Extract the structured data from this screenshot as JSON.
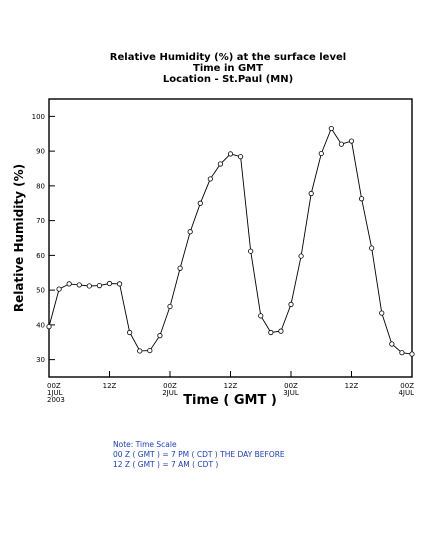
{
  "chart_data": {
    "type": "line",
    "title_lines": [
      "Relative Humidity (%) at the surface level",
      "Time in GMT",
      "Location - St.Paul (MN)"
    ],
    "xlabel": "Time ( GMT )",
    "ylabel": "Relative Humidity (%)",
    "ylim": [
      25,
      105
    ],
    "xlim": [
      0,
      72
    ],
    "y_ticks": [
      30,
      40,
      50,
      60,
      70,
      80,
      90,
      100
    ],
    "x_ticks": [
      {
        "x": 0,
        "lines": [
          "00Z",
          "1JUL",
          "2003"
        ]
      },
      {
        "x": 12,
        "lines": [
          "12Z"
        ]
      },
      {
        "x": 24,
        "lines": [
          "00Z",
          "2JUL"
        ]
      },
      {
        "x": 36,
        "lines": [
          "12Z"
        ]
      },
      {
        "x": 48,
        "lines": [
          "00Z",
          "3JUL"
        ]
      },
      {
        "x": 60,
        "lines": [
          "12Z"
        ]
      },
      {
        "x": 72,
        "lines": [
          "00Z",
          "4JUL"
        ]
      }
    ],
    "grid": false,
    "series": [
      {
        "x": [
          0,
          2,
          4,
          6,
          8,
          10,
          12,
          14,
          16,
          18,
          20,
          22,
          24,
          26,
          28,
          30,
          32,
          34,
          36,
          38,
          40,
          42,
          44,
          46,
          48,
          50,
          52,
          54,
          56,
          58,
          60,
          62,
          64,
          66,
          68,
          70,
          72
        ],
        "y": [
          39.5,
          50.3,
          51.8,
          51.5,
          51.2,
          51.3,
          51.9,
          51.8,
          37.8,
          32.5,
          32.6,
          36.9,
          45.3,
          56.3,
          66.8,
          75.0,
          82.0,
          86.3,
          89.2,
          88.4,
          61.2,
          42.6,
          37.8,
          38.2,
          45.9,
          59.8,
          77.8,
          89.3,
          96.5,
          92.0,
          92.9,
          76.3,
          62.1,
          43.4,
          34.5,
          32.0,
          31.6
        ]
      }
    ]
  },
  "notes": [
    "Note: Time Scale",
    "00 Z ( GMT ) = 7 PM ( CDT ) THE DAY BEFORE",
    "12 Z ( GMT ) = 7 AM ( CDT )"
  ]
}
